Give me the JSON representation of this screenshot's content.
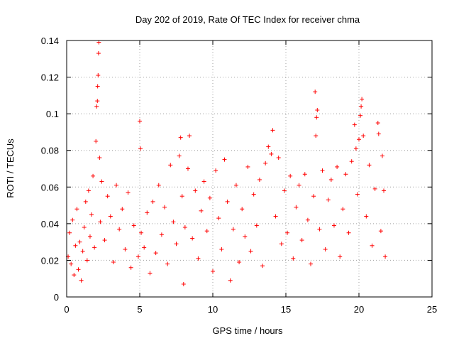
{
  "chart_data": {
    "type": "scatter",
    "title": "Day 202 of 2019, Rate Of TEC Index for receiver chma",
    "xlabel": "GPS time / hours",
    "ylabel": "ROTI / TECUs",
    "xlim": [
      0,
      25
    ],
    "ylim": [
      0,
      0.14
    ],
    "xticks": [
      0,
      5,
      10,
      15,
      20,
      25
    ],
    "xtick_labels": [
      "0",
      "5",
      "10",
      "15",
      "20",
      "25"
    ],
    "yticks": [
      0,
      0.02,
      0.04,
      0.06,
      0.08,
      0.1,
      0.12,
      0.14
    ],
    "ytick_labels": [
      "0",
      "0.02",
      "0.04",
      "0.06",
      "0.08",
      "0.1",
      "0.12",
      "0.14"
    ],
    "grid": true,
    "marker": "+",
    "color": "#ff0000",
    "series": [
      {
        "points": [
          [
            0.1,
            0.022
          ],
          [
            0.2,
            0.035
          ],
          [
            0.3,
            0.018
          ],
          [
            0.4,
            0.042
          ],
          [
            0.5,
            0.012
          ],
          [
            0.6,
            0.028
          ],
          [
            0.7,
            0.048
          ],
          [
            0.8,
            0.015
          ],
          [
            0.9,
            0.03
          ],
          [
            1.0,
            0.009
          ],
          [
            1.1,
            0.025
          ],
          [
            1.2,
            0.038
          ],
          [
            1.3,
            0.052
          ],
          [
            1.4,
            0.02
          ],
          [
            1.5,
            0.058
          ],
          [
            1.6,
            0.033
          ],
          [
            1.7,
            0.045
          ],
          [
            1.8,
            0.066
          ],
          [
            1.9,
            0.027
          ],
          [
            2.0,
            0.085
          ],
          [
            2.05,
            0.104
          ],
          [
            2.1,
            0.107
          ],
          [
            2.12,
            0.115
          ],
          [
            2.15,
            0.121
          ],
          [
            2.18,
            0.133
          ],
          [
            2.2,
            0.139
          ],
          [
            2.25,
            0.076
          ],
          [
            2.3,
            0.041
          ],
          [
            2.4,
            0.063
          ],
          [
            2.6,
            0.031
          ],
          [
            2.8,
            0.055
          ],
          [
            3.0,
            0.044
          ],
          [
            3.2,
            0.019
          ],
          [
            3.4,
            0.061
          ],
          [
            3.6,
            0.037
          ],
          [
            3.8,
            0.048
          ],
          [
            4.0,
            0.026
          ],
          [
            4.2,
            0.057
          ],
          [
            4.4,
            0.016
          ],
          [
            4.6,
            0.039
          ],
          [
            4.9,
            0.022
          ],
          [
            5.0,
            0.096
          ],
          [
            5.05,
            0.081
          ],
          [
            5.1,
            0.035
          ],
          [
            5.3,
            0.027
          ],
          [
            5.5,
            0.046
          ],
          [
            5.7,
            0.013
          ],
          [
            5.9,
            0.052
          ],
          [
            6.1,
            0.024
          ],
          [
            6.3,
            0.061
          ],
          [
            6.5,
            0.034
          ],
          [
            6.7,
            0.049
          ],
          [
            6.9,
            0.018
          ],
          [
            7.1,
            0.072
          ],
          [
            7.3,
            0.041
          ],
          [
            7.5,
            0.029
          ],
          [
            7.7,
            0.077
          ],
          [
            7.8,
            0.087
          ],
          [
            7.9,
            0.055
          ],
          [
            8.0,
            0.007
          ],
          [
            8.1,
            0.038
          ],
          [
            8.3,
            0.07
          ],
          [
            8.4,
            0.088
          ],
          [
            8.6,
            0.032
          ],
          [
            8.8,
            0.058
          ],
          [
            9.0,
            0.021
          ],
          [
            9.2,
            0.047
          ],
          [
            9.4,
            0.063
          ],
          [
            9.6,
            0.036
          ],
          [
            9.8,
            0.054
          ],
          [
            10.0,
            0.014
          ],
          [
            10.2,
            0.069
          ],
          [
            10.4,
            0.043
          ],
          [
            10.6,
            0.026
          ],
          [
            10.8,
            0.075
          ],
          [
            11.0,
            0.052
          ],
          [
            11.2,
            0.009
          ],
          [
            11.4,
            0.037
          ],
          [
            11.6,
            0.061
          ],
          [
            11.8,
            0.019
          ],
          [
            12.0,
            0.048
          ],
          [
            12.2,
            0.033
          ],
          [
            12.4,
            0.071
          ],
          [
            12.6,
            0.025
          ],
          [
            12.8,
            0.056
          ],
          [
            13.0,
            0.039
          ],
          [
            13.2,
            0.064
          ],
          [
            13.4,
            0.017
          ],
          [
            13.6,
            0.073
          ],
          [
            13.8,
            0.082
          ],
          [
            14.0,
            0.078
          ],
          [
            14.1,
            0.091
          ],
          [
            14.3,
            0.044
          ],
          [
            14.5,
            0.076
          ],
          [
            14.7,
            0.029
          ],
          [
            14.9,
            0.058
          ],
          [
            15.1,
            0.035
          ],
          [
            15.3,
            0.066
          ],
          [
            15.5,
            0.021
          ],
          [
            15.7,
            0.049
          ],
          [
            15.9,
            0.061
          ],
          [
            16.1,
            0.031
          ],
          [
            16.3,
            0.067
          ],
          [
            16.5,
            0.042
          ],
          [
            16.7,
            0.018
          ],
          [
            16.9,
            0.055
          ],
          [
            17.0,
            0.112
          ],
          [
            17.05,
            0.088
          ],
          [
            17.1,
            0.098
          ],
          [
            17.15,
            0.102
          ],
          [
            17.3,
            0.037
          ],
          [
            17.5,
            0.069
          ],
          [
            17.7,
            0.026
          ],
          [
            17.9,
            0.053
          ],
          [
            18.1,
            0.064
          ],
          [
            18.3,
            0.039
          ],
          [
            18.5,
            0.071
          ],
          [
            18.7,
            0.022
          ],
          [
            18.9,
            0.048
          ],
          [
            19.1,
            0.067
          ],
          [
            19.3,
            0.035
          ],
          [
            19.5,
            0.074
          ],
          [
            19.7,
            0.094
          ],
          [
            19.8,
            0.081
          ],
          [
            19.9,
            0.056
          ],
          [
            20.0,
            0.086
          ],
          [
            20.1,
            0.099
          ],
          [
            20.15,
            0.104
          ],
          [
            20.2,
            0.108
          ],
          [
            20.3,
            0.088
          ],
          [
            20.5,
            0.044
          ],
          [
            20.7,
            0.072
          ],
          [
            20.9,
            0.028
          ],
          [
            21.1,
            0.059
          ],
          [
            21.3,
            0.095
          ],
          [
            21.35,
            0.089
          ],
          [
            21.5,
            0.036
          ],
          [
            21.6,
            0.077
          ],
          [
            21.7,
            0.058
          ],
          [
            21.8,
            0.022
          ]
        ]
      }
    ]
  }
}
